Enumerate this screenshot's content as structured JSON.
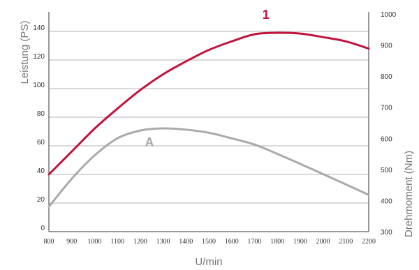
{
  "chart_data": {
    "type": "line",
    "xlabel": "U/min",
    "ylabel_left": "Leistung (PS)",
    "ylabel_right": "Drehmoment (Nm)",
    "xlim": [
      800,
      2200
    ],
    "ylim_left": [
      0,
      140
    ],
    "ylim_right": [
      300,
      1000
    ],
    "x_ticks": [
      800,
      900,
      1000,
      1100,
      1200,
      1300,
      1400,
      1500,
      1600,
      1700,
      1800,
      1900,
      2000,
      2100,
      2200
    ],
    "y_left_ticks": [
      0,
      20,
      40,
      60,
      80,
      100,
      120,
      140
    ],
    "y_right_ticks": [
      300,
      400,
      500,
      600,
      700,
      800,
      900,
      1000
    ],
    "grid": true,
    "series": [
      {
        "name": "1",
        "axis": "left",
        "color": "#c0143c",
        "x": [
          800,
          900,
          1000,
          1100,
          1200,
          1300,
          1400,
          1500,
          1600,
          1700,
          1800,
          1900,
          2000,
          2100,
          2200
        ],
        "y": [
          40,
          56,
          72,
          86,
          99,
          110,
          119,
          127,
          133,
          138,
          139,
          138.5,
          136,
          133,
          128
        ]
      },
      {
        "name": "A",
        "axis": "right",
        "color": "#aaaaaa",
        "x": [
          800,
          900,
          1000,
          1100,
          1200,
          1300,
          1400,
          1500,
          1600,
          1700,
          1800,
          1900,
          2000,
          2100,
          2200
        ],
        "y": [
          380,
          470,
          545,
          600,
          625,
          632,
          628,
          618,
          600,
          580,
          550,
          518,
          485,
          452,
          418
        ]
      }
    ]
  }
}
